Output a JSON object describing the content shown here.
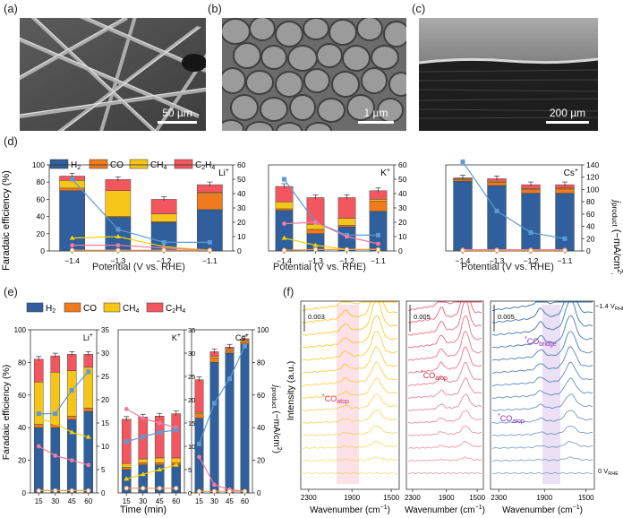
{
  "panels": {
    "a": {
      "label": "(a)",
      "scale": "50 µm"
    },
    "b": {
      "label": "(b)",
      "scale": "1 µm"
    },
    "c": {
      "label": "(c)",
      "scale": "200 µm"
    },
    "d": {
      "label": "(d)"
    },
    "e": {
      "label": "(e)"
    },
    "f": {
      "label": "(f)"
    }
  },
  "legend": {
    "h2": "H",
    "co": "CO",
    "ch4": "CH",
    "c2h4": "C"
  },
  "colors": {
    "h2": "#2f5f9c",
    "co": "#f07a1e",
    "ch4": "#f6c51a",
    "c2h4": "#f2575f",
    "line_blue": "#5b9bd5",
    "line_pink": "#f07ca0",
    "line_yellow": "#f6d000",
    "line_orange": "#f29b4b"
  },
  "d_axes": {
    "ylabel_left": "Faradaic efficiency (%)",
    "xlabel": "Potential (V vs. RHE)",
    "ylabel_right": "j",
    "ylabel_right_sub": "product",
    "ylabel_right_unit": " (−mA/cm",
    "ylabel_right_end": ")"
  },
  "e_axes": {
    "ylabel_left": "Faradaic efficiency (%)",
    "xlabel": "Time (min)"
  },
  "f_axes": {
    "ylabel": "Intensity (a.u.)",
    "xlabel": "Wavenumber (cm",
    "xlabel_end": ")",
    "top_v": "−1.4 V",
    "bottom_v": "0 V",
    "rhe": "RHE"
  },
  "f_annot": {
    "co": "CO",
    "atop": "atop",
    "bridge": "bridge",
    "star": "*",
    "scale1": "0.003",
    "scale2": "0.005",
    "scale3": "0.005"
  },
  "chart_data": [
    {
      "type": "bar",
      "panel": "d-Li",
      "cation": "Li",
      "categories": [
        "−1.4",
        "−1.3",
        "−1.2",
        "−1.1"
      ],
      "ylim": [
        0,
        100
      ],
      "ylim_right": [
        0,
        60
      ],
      "yticks": [
        0,
        20,
        40,
        60,
        80,
        100
      ],
      "yticks_right": [
        0,
        10,
        20,
        30,
        40,
        50,
        60
      ],
      "series": [
        {
          "name": "H2",
          "values": [
            70,
            39,
            33,
            48
          ]
        },
        {
          "name": "CO",
          "values": [
            3,
            1,
            1,
            19
          ]
        },
        {
          "name": "CH4",
          "values": [
            9,
            30,
            9,
            1
          ]
        },
        {
          "name": "C2H4",
          "values": [
            5,
            13,
            17,
            9
          ]
        }
      ],
      "lines": [
        {
          "name": "H2",
          "values": [
            50,
            15,
            6,
            6
          ]
        },
        {
          "name": "CH4",
          "values": [
            9,
            10,
            3,
            0.5
          ]
        },
        {
          "name": "C2H4",
          "values": [
            4,
            4,
            2,
            0.5
          ]
        },
        {
          "name": "CO",
          "values": [
            0.5,
            0.5,
            0.5,
            0.5
          ]
        }
      ]
    },
    {
      "type": "bar",
      "panel": "d-K",
      "cation": "K",
      "categories": [
        "−1.4",
        "−1.3",
        "−1.2",
        "−1.1"
      ],
      "ylim": [
        0,
        100
      ],
      "ylim_right": [
        0,
        60
      ],
      "yticks": [
        0,
        20,
        40,
        60,
        80,
        100
      ],
      "yticks_right": [
        0,
        10,
        20,
        30,
        40,
        50,
        60
      ],
      "series": [
        {
          "name": "H2",
          "values": [
            47,
            20,
            28,
            46
          ]
        },
        {
          "name": "CO",
          "values": [
            2,
            5,
            2,
            12
          ]
        },
        {
          "name": "CH4",
          "values": [
            8,
            6,
            8,
            2
          ]
        },
        {
          "name": "C2H4",
          "values": [
            18,
            31,
            24,
            10
          ]
        }
      ],
      "lines": [
        {
          "name": "H2",
          "values": [
            50,
            20,
            11,
            11
          ]
        },
        {
          "name": "C2H4",
          "values": [
            19,
            20,
            10,
            5
          ]
        },
        {
          "name": "CH4",
          "values": [
            9,
            4,
            1,
            1
          ]
        },
        {
          "name": "CO",
          "values": [
            0.5,
            1,
            1,
            1
          ]
        }
      ]
    },
    {
      "type": "bar",
      "panel": "d-Cs",
      "cation": "Cs",
      "categories": [
        "−1.4",
        "−1.3",
        "−1.2",
        "−1.1"
      ],
      "ylim": [
        0,
        100
      ],
      "ylim_right": [
        0,
        140
      ],
      "yticks": [
        0,
        20,
        40,
        60,
        80,
        100
      ],
      "yticks_right": [
        0,
        20,
        40,
        60,
        80,
        100,
        120,
        140
      ],
      "series": [
        {
          "name": "H2",
          "values": [
            81,
            76,
            67,
            67
          ]
        },
        {
          "name": "CO",
          "values": [
            2,
            4,
            4,
            5
          ]
        },
        {
          "name": "CH4",
          "values": [
            1,
            1,
            1,
            1
          ]
        },
        {
          "name": "C2H4",
          "values": [
            1,
            3,
            5,
            4
          ]
        }
      ],
      "lines": [
        {
          "name": "H2",
          "values": [
            145,
            65,
            30,
            20
          ]
        },
        {
          "name": "C2H4",
          "values": [
            2,
            2,
            2,
            2
          ]
        },
        {
          "name": "CO",
          "values": [
            1,
            1,
            1,
            1
          ]
        }
      ]
    },
    {
      "type": "bar",
      "panel": "e-Li",
      "cation": "Li",
      "categories": [
        "15",
        "30",
        "45",
        "60"
      ],
      "ylim": [
        0,
        100
      ],
      "ylim_right": [
        0,
        35
      ],
      "yticks": [
        0,
        20,
        40,
        60,
        80,
        100
      ],
      "yticks_right": [
        0,
        5,
        10,
        15,
        20,
        25,
        30,
        35
      ],
      "series": [
        {
          "name": "H2",
          "values": [
            40,
            40,
            45,
            50
          ]
        },
        {
          "name": "CO",
          "values": [
            2,
            2,
            2,
            2
          ]
        },
        {
          "name": "CH4",
          "values": [
            26,
            32,
            28,
            25
          ]
        },
        {
          "name": "C2H4",
          "values": [
            14,
            10,
            10,
            8
          ]
        }
      ],
      "lines": [
        {
          "name": "H2",
          "values": [
            17,
            17,
            22,
            26
          ]
        },
        {
          "name": "CH4",
          "values": [
            16,
            15,
            13,
            12
          ]
        },
        {
          "name": "C2H4",
          "values": [
            10,
            8,
            7,
            6
          ]
        },
        {
          "name": "CO",
          "values": [
            0.5,
            0.5,
            0.5,
            0.5
          ]
        }
      ]
    },
    {
      "type": "bar",
      "panel": "e-K",
      "cation": "K",
      "categories": [
        "15",
        "30",
        "45",
        "60"
      ],
      "ylim": [
        0,
        35
      ],
      "yticks": [
        0,
        5,
        10,
        15,
        20,
        25,
        30,
        35
      ],
      "series": [
        {
          "name": "H2",
          "values": [
            5,
            6,
            6,
            6
          ]
        },
        {
          "name": "CO",
          "values": [
            0.5,
            0.5,
            0.5,
            0.5
          ]
        },
        {
          "name": "CH4",
          "values": [
            0.8,
            0.8,
            1,
            1
          ]
        },
        {
          "name": "C2H4",
          "values": [
            9.5,
            9,
            9,
            9.5
          ]
        }
      ],
      "lines": [
        {
          "name": "C2H4",
          "values": [
            18,
            16,
            15,
            14
          ]
        },
        {
          "name": "H2",
          "values": [
            11,
            12,
            13,
            13.5
          ]
        },
        {
          "name": "CH4",
          "values": [
            3,
            4,
            5,
            6
          ]
        },
        {
          "name": "CO",
          "values": [
            1,
            1,
            1,
            1
          ]
        }
      ]
    },
    {
      "type": "bar",
      "panel": "e-Cs",
      "cation": "Cs",
      "categories": [
        "15",
        "30",
        "45",
        "60"
      ],
      "ylim": [
        0,
        35
      ],
      "ylim_right": [
        0,
        100
      ],
      "yticks_right": [
        0,
        20,
        40,
        60,
        80,
        100
      ],
      "series": [
        {
          "name": "H2",
          "values": [
            16,
            28,
            30,
            32
          ]
        },
        {
          "name": "CO",
          "values": [
            1,
            1,
            0.5,
            0.5
          ]
        },
        {
          "name": "CH4",
          "values": [
            0.3,
            0.3,
            0.3,
            0.3
          ]
        },
        {
          "name": "C2H4",
          "values": [
            7,
            1,
            0.5,
            0.3
          ]
        }
      ],
      "lines": [
        {
          "name": "H2",
          "values": [
            30,
            55,
            70,
            90
          ]
        },
        {
          "name": "C2H4",
          "values": [
            22,
            5,
            2,
            1
          ]
        },
        {
          "name": "CO",
          "values": [
            1,
            1,
            1,
            1
          ]
        }
      ]
    }
  ]
}
